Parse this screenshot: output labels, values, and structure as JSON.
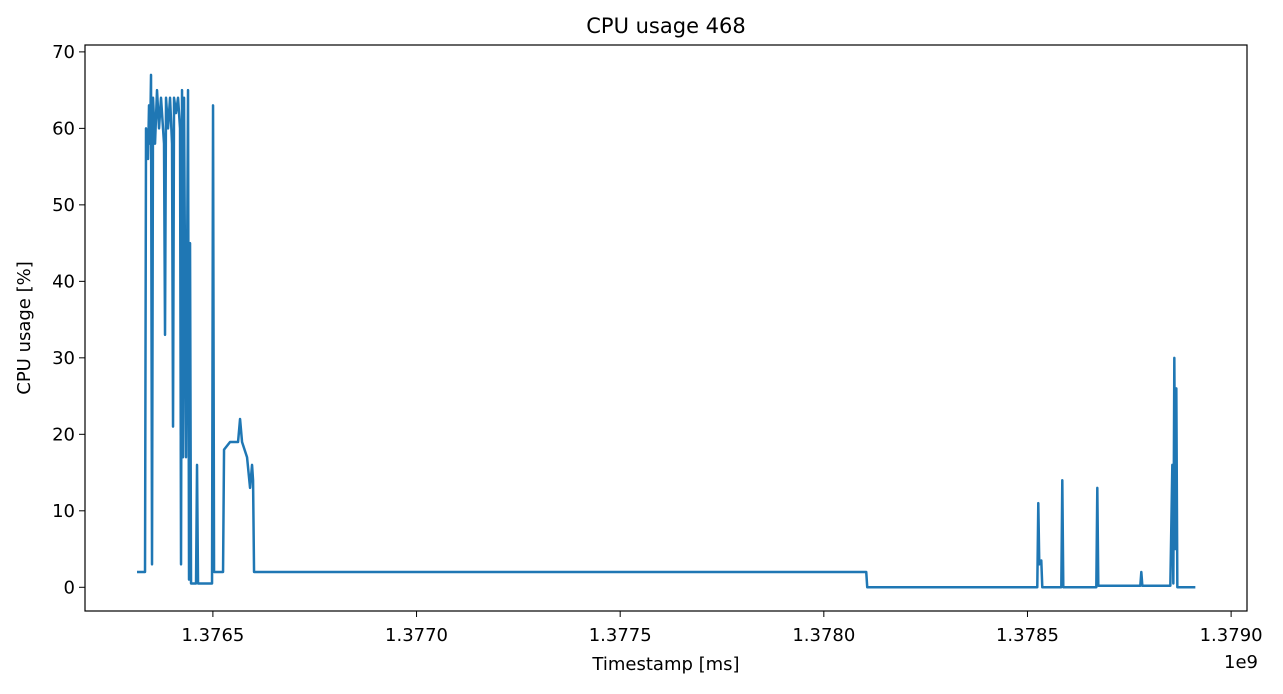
{
  "chart_data": {
    "type": "line",
    "title": "CPU usage 468",
    "xlabel": "Timestamp [ms]",
    "ylabel": "CPU usage [%]",
    "x_offset_label": "1e9",
    "x": [
      1376313712,
      1376333360,
      1376335816,
      1376340728,
      1376343184,
      1376345640,
      1376348096,
      1376350552,
      1376353008,
      1376357920,
      1376362832,
      1376367744,
      1376372656,
      1376380024,
      1376382480,
      1376384936,
      1376389848,
      1376394760,
      1376399672,
      1376402128,
      1376404584,
      1376409496,
      1376414408,
      1376419320,
      1376421776,
      1376424232,
      1376426688,
      1376429144,
      1376434056,
      1376438968,
      1376441424,
      1376443880,
      1376446336,
      1376458616,
      1376461072,
      1376463528,
      1376497912,
      1376500368,
      1376502824,
      1376524928,
      1376527384,
      1376542120,
      1376561768,
      1376566680,
      1376571592,
      1376583872,
      1376591240,
      1376596152,
      1376598608,
      1376601064,
      1378104136,
      1378106592,
      1378524112,
      1378526568,
      1378529024,
      1378533936,
      1378536392,
      1378583056,
      1378585512,
      1378587968,
      1378669016,
      1378671472,
      1378673928,
      1378777080,
      1378779536,
      1378781992,
      1378850760,
      1378855672,
      1378858128,
      1378860584,
      1378863040,
      1378865496,
      1378867952,
      1378912160
    ],
    "series": [
      {
        "name": "CPU usage",
        "color": "#1f77b4",
        "values": [
          2,
          2,
          60,
          56,
          63,
          58,
          67,
          3,
          64,
          58,
          65,
          60,
          64,
          58,
          33,
          64,
          60,
          64,
          58,
          21,
          64,
          62,
          64,
          60,
          3,
          65,
          17,
          64,
          17,
          65,
          1,
          45,
          0.5,
          0.5,
          16,
          0.5,
          0.5,
          63,
          2,
          2,
          18,
          19,
          19,
          22,
          19,
          17,
          13,
          16,
          14,
          2,
          2,
          0,
          0,
          11,
          3,
          3.5,
          0,
          0,
          14,
          0,
          0,
          13,
          0.2,
          0.2,
          2,
          0.2,
          0.2,
          16,
          0.5,
          30,
          5,
          26,
          0,
          0
        ]
      }
    ],
    "xlim": [
      1376186000,
      1379039000
    ],
    "ylim": [
      -3.1,
      70.9
    ],
    "xticks": [
      {
        "value": 1376500000,
        "label": "1.3765"
      },
      {
        "value": 1377000000,
        "label": "1.3770"
      },
      {
        "value": 1377500000,
        "label": "1.3775"
      },
      {
        "value": 1378000000,
        "label": "1.3780"
      },
      {
        "value": 1378500000,
        "label": "1.3785"
      },
      {
        "value": 1379000000,
        "label": "1.3790"
      }
    ],
    "yticks": [
      0,
      10,
      20,
      30,
      40,
      50,
      60,
      70
    ]
  }
}
